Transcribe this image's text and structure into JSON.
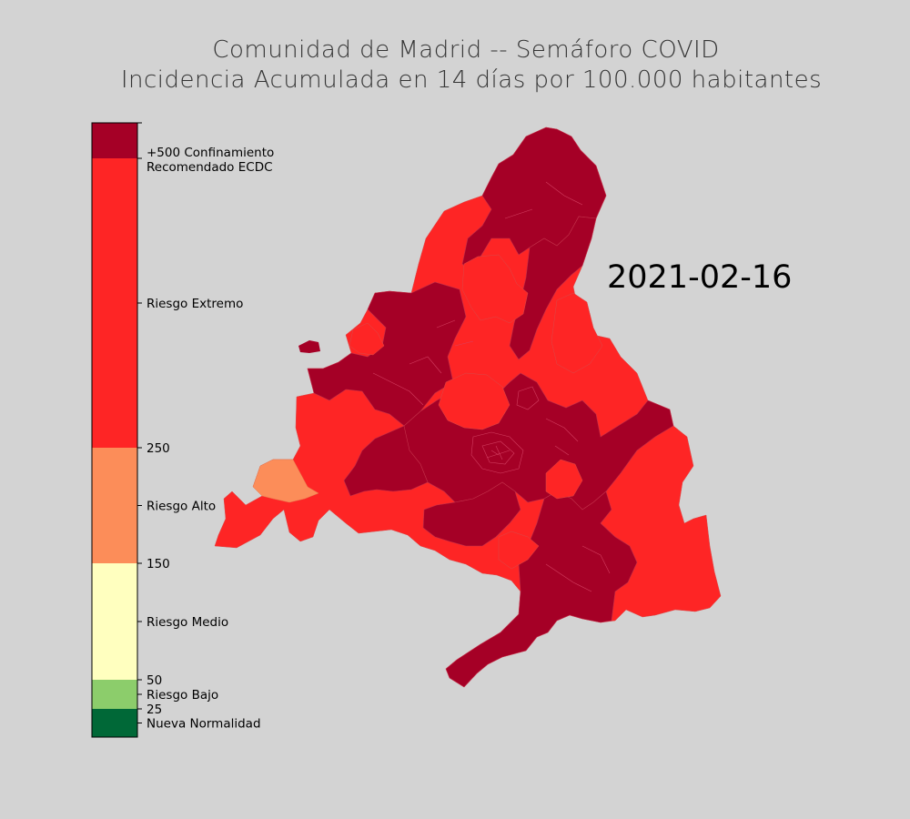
{
  "title": {
    "line1": "Comunidad de Madrid -- Semáforo COVID",
    "line2": "Incidencia Acumulada en 14 días por 100.000 habitantes"
  },
  "date": "2021-02-16",
  "legend": {
    "bands": [
      {
        "id": "nueva-normalidad",
        "from": 0,
        "to": 25,
        "color": "#006837"
      },
      {
        "id": "riesgo-bajo",
        "from": 25,
        "to": 50,
        "color": "#8ccd6b"
      },
      {
        "id": "riesgo-medio",
        "from": 50,
        "to": 150,
        "color": "#ffffbf"
      },
      {
        "id": "riesgo-alto",
        "from": 150,
        "to": 250,
        "color": "#fc8d59"
      },
      {
        "id": "riesgo-extremo",
        "from": 250,
        "to": 500,
        "color": "#fe2525"
      },
      {
        "id": "confinamiento",
        "from": 500,
        "to": 530,
        "color": "#a50026"
      }
    ],
    "labels": [
      {
        "text": "+500 Confinamiento",
        "value": 512
      },
      {
        "text": "Recomendado ECDC",
        "value": 500
      },
      {
        "text": "Riesgo Extremo",
        "value": 375
      },
      {
        "text": "250",
        "value": 250
      },
      {
        "text": "Riesgo Alto",
        "value": 200
      },
      {
        "text": "150",
        "value": 150
      },
      {
        "text": "Riesgo Medio",
        "value": 100
      },
      {
        "text": "50",
        "value": 50
      },
      {
        "text": "Riesgo Bajo",
        "value": 37.5
      },
      {
        "text": "25",
        "value": 25
      },
      {
        "text": "Nueva Normalidad",
        "value": 12.5
      }
    ]
  },
  "colors": {
    "confinamiento": "#a50026",
    "extremo": "#fe2525",
    "alto": "#fc8d59",
    "background": "#d3d3d3"
  }
}
